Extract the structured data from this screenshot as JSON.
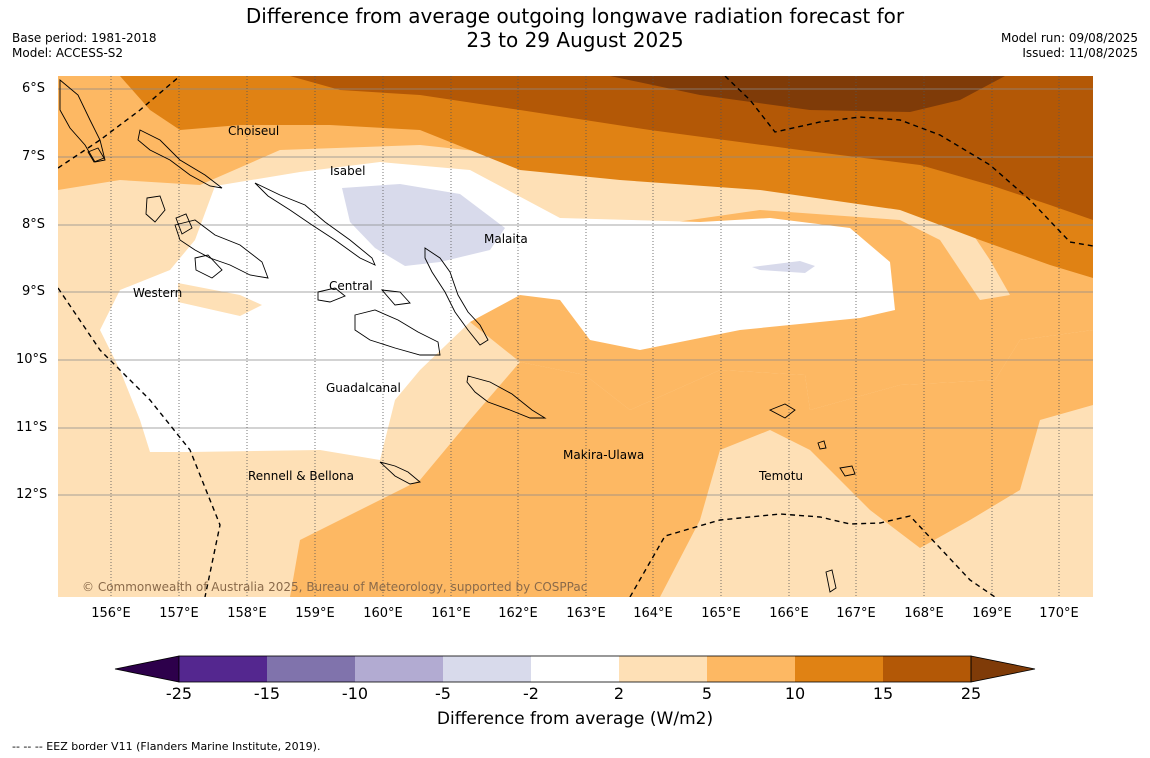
{
  "title_line1": "Difference from average outgoing longwave radiation forecast for",
  "title_line2": "23 to 29 August 2025",
  "base_period": "Base period: 1981-2018",
  "model": "Model: ACCESS-S2",
  "model_run": "Model run: 09/08/2025",
  "issued": "Issued: 11/08/2025",
  "lat_labels": [
    "6°S",
    "7°S",
    "8°S",
    "9°S",
    "10°S",
    "11°S",
    "12°S"
  ],
  "lon_labels": [
    "156°E",
    "157°E",
    "158°E",
    "159°E",
    "160°E",
    "161°E",
    "162°E",
    "163°E",
    "164°E",
    "165°E",
    "166°E",
    "167°E",
    "168°E",
    "169°E",
    "170°E"
  ],
  "regions": {
    "choiseul": "Choiseul",
    "isabel": "Isabel",
    "malaita": "Malaita",
    "western": "Western",
    "central": "Central",
    "guadalcanal": "Guadalcanal",
    "makira": "Makira-Ulawa",
    "rennell": "Rennell & Bellona",
    "temotu": "Temotu"
  },
  "copyright": "© Commonwealth of Australia 2025, Bureau of Meteorology, supported by COSPPac",
  "colorbar": {
    "ticks": [
      "-25",
      "-15",
      "-10",
      "-5",
      "-2",
      "2",
      "5",
      "10",
      "15",
      "25"
    ],
    "colors": [
      "#54278f",
      "#8073ac",
      "#b2abd2",
      "#d8daeb",
      "#ffffff",
      "#fee0b6",
      "#fdb863",
      "#e08214",
      "#b35806"
    ],
    "under_color": "#2d004b",
    "over_color": "#7f3b08",
    "title": "Difference from average (W/m2)"
  },
  "footer": "-- -- -- EEZ border V11 (Flanders Marine Institute, 2019)."
}
